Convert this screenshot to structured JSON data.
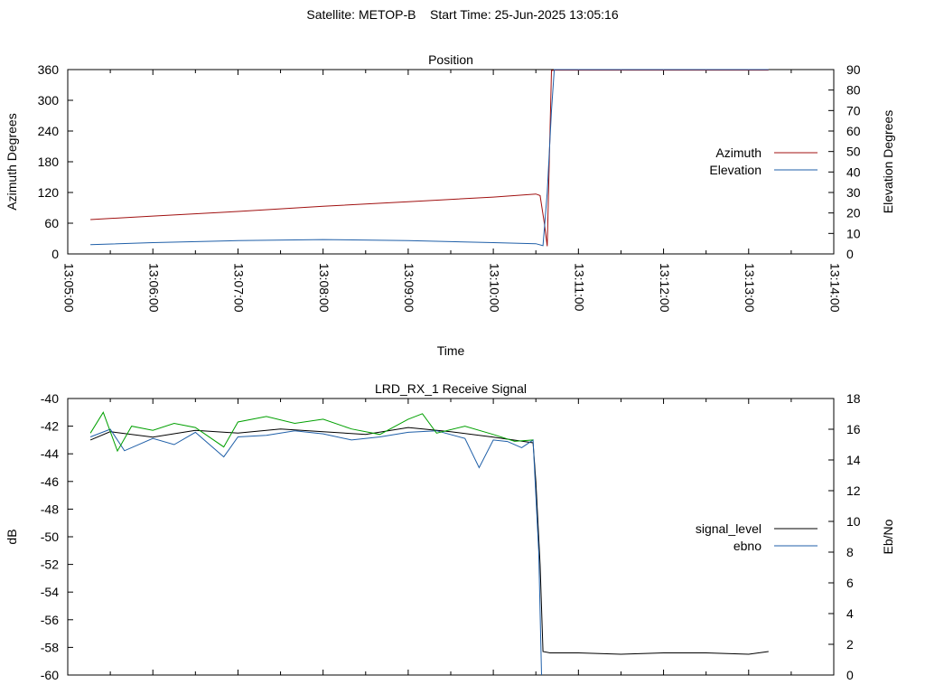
{
  "page_title": "Satellite: METOP-B    Start Time: 25-Jun-2025 13:05:16",
  "chart_data": [
    {
      "type": "line",
      "title": "Position",
      "xlabel": "Time",
      "ylabel": "Azimuth Degrees",
      "y2label": "Elevation Degrees",
      "xlim": [
        "13:05:00",
        "13:14:00"
      ],
      "ylim": [
        0,
        360
      ],
      "y2lim": [
        0,
        90
      ],
      "xticks": [
        "13:05:00",
        "13:06:00",
        "13:07:00",
        "13:08:00",
        "13:09:00",
        "13:10:00",
        "13:11:00",
        "13:12:00",
        "13:13:00",
        "13:14:00"
      ],
      "yticks": [
        "0",
        "60",
        "120",
        "180",
        "240",
        "300",
        "360"
      ],
      "y2ticks": [
        "0",
        "10",
        "20",
        "30",
        "40",
        "50",
        "60",
        "70",
        "80",
        "90"
      ],
      "legend_position": "right",
      "series": [
        {
          "name": "Azimuth",
          "axis": "y",
          "color": "#a01010",
          "x": [
            "13:05:16",
            "13:06:00",
            "13:07:00",
            "13:08:00",
            "13:09:00",
            "13:10:00",
            "13:10:30",
            "13:10:33",
            "13:10:36",
            "13:10:38",
            "13:10:41",
            "13:10:43",
            "13:11:00",
            "13:12:00",
            "13:13:00",
            "13:13:14"
          ],
          "y": [
            67,
            74,
            83,
            93,
            102,
            111,
            117,
            114,
            60,
            15,
            358,
            359,
            359,
            359,
            359,
            359
          ]
        },
        {
          "name": "Elevation",
          "axis": "y2",
          "color": "#1f5fa8",
          "x": [
            "13:05:16",
            "13:06:00",
            "13:07:00",
            "13:08:00",
            "13:09:00",
            "13:10:00",
            "13:10:30",
            "13:10:35",
            "13:10:38",
            "13:10:41",
            "13:10:43",
            "13:11:00",
            "13:12:00",
            "13:13:00",
            "13:13:14"
          ],
          "y": [
            4.5,
            5.5,
            6.5,
            7,
            6.5,
            5.5,
            5,
            4,
            30,
            70,
            90,
            90,
            90,
            90,
            90
          ]
        }
      ]
    },
    {
      "type": "line",
      "title": "LRD_RX_1 Receive Signal",
      "ylabel": "dB",
      "y2label": "Eb/No",
      "xlim": [
        "13:05:00",
        "13:14:00"
      ],
      "ylim": [
        -60,
        -40
      ],
      "y2lim": [
        0,
        18
      ],
      "yticks": [
        "-60",
        "-58",
        "-56",
        "-54",
        "-52",
        "-50",
        "-48",
        "-46",
        "-44",
        "-42",
        "-40"
      ],
      "y2ticks": [
        "0",
        "2",
        "4",
        "6",
        "8",
        "10",
        "12",
        "14",
        "16",
        "18"
      ],
      "legend_position": "right",
      "series": [
        {
          "name": "signal_level",
          "axis": "y",
          "color": "#000000",
          "x": [
            "13:05:16",
            "13:05:30",
            "13:06:00",
            "13:06:30",
            "13:07:00",
            "13:07:30",
            "13:08:00",
            "13:08:30",
            "13:09:00",
            "13:09:30",
            "13:10:00",
            "13:10:28",
            "13:10:30",
            "13:10:33",
            "13:10:35",
            "13:10:40",
            "13:11:00",
            "13:11:30",
            "13:12:00",
            "13:12:30",
            "13:13:00",
            "13:13:14"
          ],
          "y": [
            -43,
            -42.4,
            -42.8,
            -42.3,
            -42.5,
            -42.2,
            -42.4,
            -42.6,
            -42.1,
            -42.4,
            -42.8,
            -43.2,
            -46,
            -52,
            -58.3,
            -58.4,
            -58.4,
            -58.5,
            -58.4,
            -58.4,
            -58.5,
            -58.3
          ]
        },
        {
          "name": "ebno",
          "axis": "y2",
          "color": "#1f5fa8",
          "x": [
            "13:05:16",
            "13:05:30",
            "13:05:40",
            "13:06:00",
            "13:06:15",
            "13:06:30",
            "13:06:50",
            "13:07:00",
            "13:07:20",
            "13:07:40",
            "13:08:00",
            "13:08:20",
            "13:08:40",
            "13:09:00",
            "13:09:20",
            "13:09:40",
            "13:09:50",
            "13:10:00",
            "13:10:10",
            "13:10:20",
            "13:10:28",
            "13:10:32",
            "13:10:34"
          ],
          "y": [
            15.5,
            16,
            14.6,
            15.4,
            15,
            15.8,
            14.2,
            15.5,
            15.6,
            15.9,
            15.7,
            15.3,
            15.5,
            15.8,
            15.9,
            15.4,
            13.5,
            15.3,
            15.2,
            14.8,
            15.3,
            8,
            0
          ]
        },
        {
          "name": "",
          "axis": "y",
          "color": "#00a000",
          "x": [
            "13:05:16",
            "13:05:25",
            "13:05:35",
            "13:05:45",
            "13:06:00",
            "13:06:15",
            "13:06:30",
            "13:06:50",
            "13:07:00",
            "13:07:20",
            "13:07:40",
            "13:08:00",
            "13:08:20",
            "13:08:40",
            "13:09:00",
            "13:09:10",
            "13:09:20",
            "13:09:40",
            "13:10:00",
            "13:10:15",
            "13:10:28"
          ],
          "y": [
            -42.5,
            -41,
            -43.8,
            -42,
            -42.3,
            -41.8,
            -42.1,
            -43.5,
            -41.7,
            -41.3,
            -41.8,
            -41.5,
            -42.2,
            -42.6,
            -41.5,
            -41.1,
            -42.5,
            -42,
            -42.6,
            -43.1,
            -43
          ]
        }
      ]
    }
  ]
}
